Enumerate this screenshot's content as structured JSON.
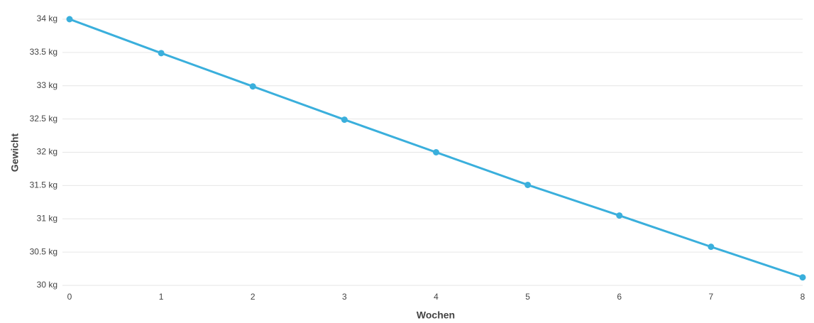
{
  "chart_data": {
    "type": "line",
    "x_label": "Wochen",
    "y_label": "Gewicht",
    "x": [
      0,
      1,
      2,
      3,
      4,
      5,
      6,
      7,
      8
    ],
    "series": [
      {
        "color": "#3aafdc",
        "values": [
          34,
          33.49,
          32.99,
          32.49,
          32.0,
          31.51,
          31.05,
          30.58,
          30.12
        ]
      }
    ],
    "xlim": [
      0,
      8
    ],
    "xticks": [
      0,
      1,
      2,
      3,
      4,
      5,
      6,
      7,
      8
    ],
    "ylim": [
      30,
      34
    ],
    "yticks": [
      {
        "value": 30,
        "label": "30 kg"
      },
      {
        "value": 30.5,
        "label": "30.5 kg"
      },
      {
        "value": 31,
        "label": "31 kg"
      },
      {
        "value": 31.5,
        "label": "31.5 kg"
      },
      {
        "value": 32,
        "label": "32 kg"
      },
      {
        "value": 32.5,
        "label": "32.5 kg"
      },
      {
        "value": 33,
        "label": "33 kg"
      },
      {
        "value": 33.5,
        "label": "33.5 kg"
      },
      {
        "value": 34,
        "label": "34 kg"
      }
    ],
    "grid": true
  }
}
